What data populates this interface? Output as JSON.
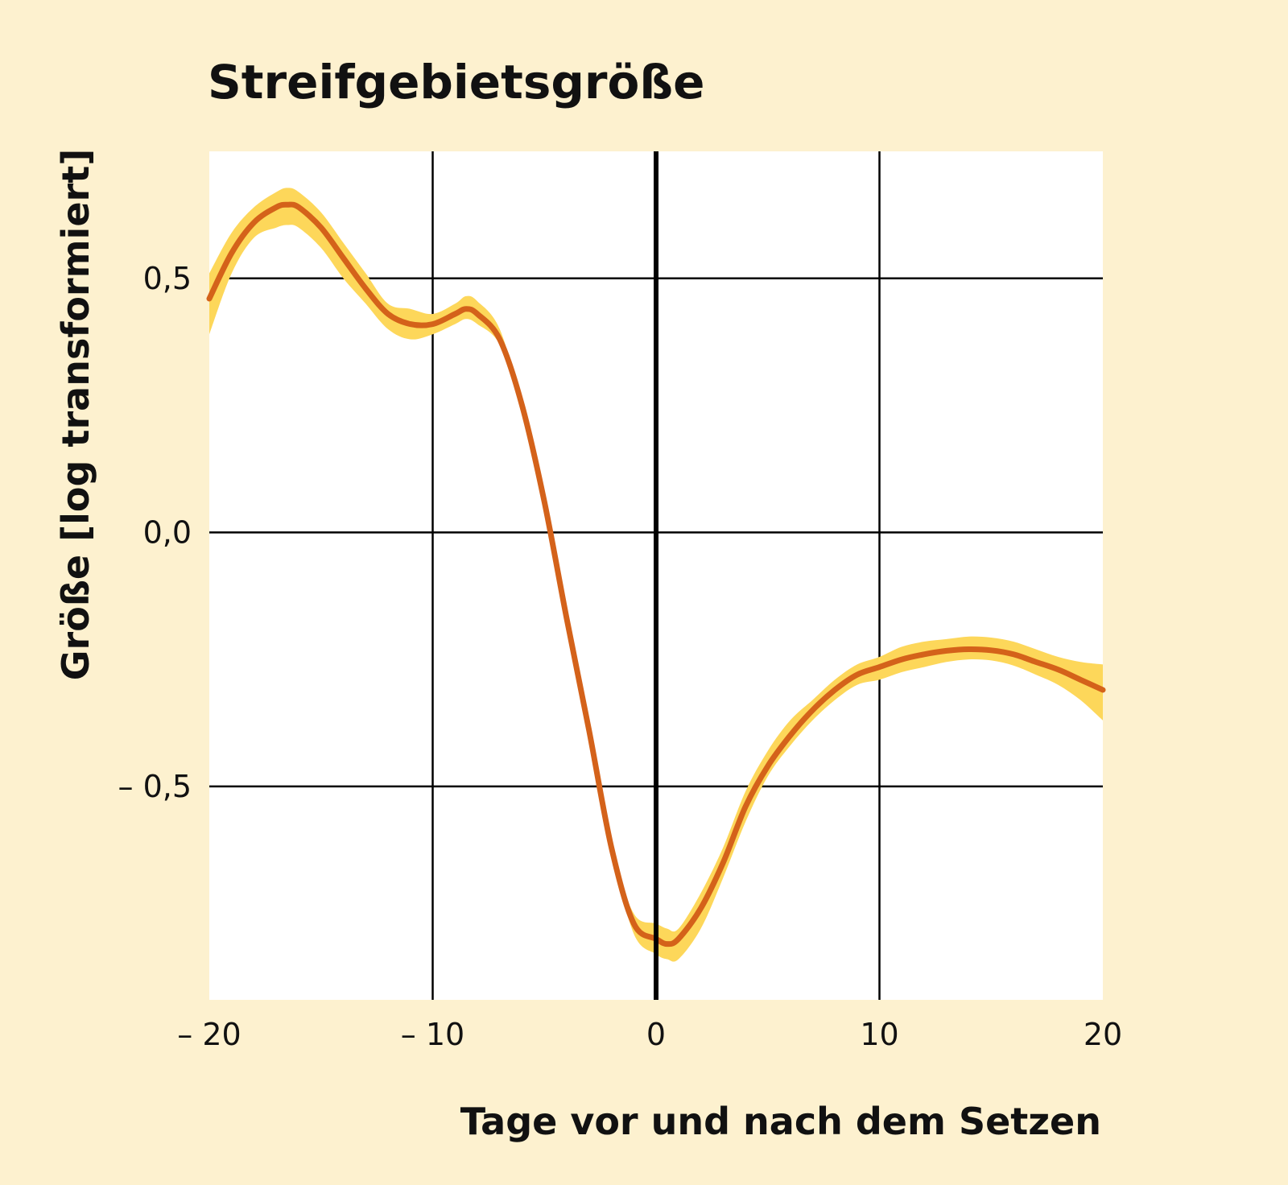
{
  "chart_data": {
    "type": "line",
    "title": "Streifgebietsgröße",
    "xlabel": "Tage vor und nach dem Setzen",
    "ylabel": "Größe [log transformiert]",
    "xlim": [
      -20,
      20
    ],
    "ylim": [
      -0.92,
      0.75
    ],
    "x_ticks": [
      -20,
      -10,
      0,
      10,
      20
    ],
    "x_tick_labels": [
      "– 20",
      "– 10",
      "0",
      "10",
      "20"
    ],
    "y_ticks": [
      0.5,
      0.0,
      -0.5
    ],
    "y_tick_labels": [
      "0,5",
      "0,0",
      "– 0,5"
    ],
    "grid": true,
    "reference_line_x": 0,
    "colors": {
      "background": "#fdf1cf",
      "plot_area": "#ffffff",
      "line": "#d4621a",
      "band": "#fdd75a",
      "grid": "#000000"
    },
    "series": [
      {
        "x": [
          -20,
          -19,
          -18,
          -17,
          -16.5,
          -16,
          -15,
          -14,
          -13,
          -12,
          -11,
          -10,
          -9,
          -8.5,
          -8,
          -7,
          -6,
          -5,
          -4,
          -3,
          -2,
          -1,
          0,
          0.5,
          1,
          2,
          3,
          4,
          5,
          6,
          7,
          8,
          9,
          10,
          11,
          12,
          13,
          14,
          15,
          16,
          17,
          18,
          19,
          20
        ],
        "y": [
          0.46,
          0.55,
          0.61,
          0.64,
          0.645,
          0.64,
          0.6,
          0.54,
          0.48,
          0.43,
          0.41,
          0.41,
          0.43,
          0.44,
          0.43,
          0.38,
          0.25,
          0.06,
          -0.17,
          -0.39,
          -0.62,
          -0.77,
          -0.8,
          -0.81,
          -0.8,
          -0.74,
          -0.65,
          -0.54,
          -0.46,
          -0.4,
          -0.35,
          -0.31,
          -0.28,
          -0.265,
          -0.25,
          -0.24,
          -0.233,
          -0.23,
          -0.232,
          -0.24,
          -0.255,
          -0.27,
          -0.29,
          -0.31
        ],
        "lower": [
          0.39,
          0.51,
          0.58,
          0.6,
          0.605,
          0.6,
          0.56,
          0.5,
          0.45,
          0.4,
          0.38,
          0.39,
          0.41,
          0.42,
          0.41,
          0.37,
          0.25,
          0.06,
          -0.17,
          -0.39,
          -0.62,
          -0.79,
          -0.83,
          -0.84,
          -0.84,
          -0.78,
          -0.68,
          -0.57,
          -0.48,
          -0.42,
          -0.37,
          -0.33,
          -0.3,
          -0.29,
          -0.275,
          -0.265,
          -0.255,
          -0.25,
          -0.252,
          -0.262,
          -0.28,
          -0.3,
          -0.33,
          -0.37
        ],
        "upper": [
          0.51,
          0.59,
          0.64,
          0.67,
          0.678,
          0.67,
          0.63,
          0.57,
          0.51,
          0.45,
          0.44,
          0.43,
          0.45,
          0.465,
          0.455,
          0.4,
          0.25,
          0.06,
          -0.17,
          -0.39,
          -0.62,
          -0.75,
          -0.77,
          -0.78,
          -0.78,
          -0.71,
          -0.62,
          -0.51,
          -0.43,
          -0.37,
          -0.33,
          -0.29,
          -0.26,
          -0.245,
          -0.225,
          -0.215,
          -0.21,
          -0.205,
          -0.207,
          -0.215,
          -0.23,
          -0.245,
          -0.255,
          -0.26
        ]
      }
    ]
  }
}
